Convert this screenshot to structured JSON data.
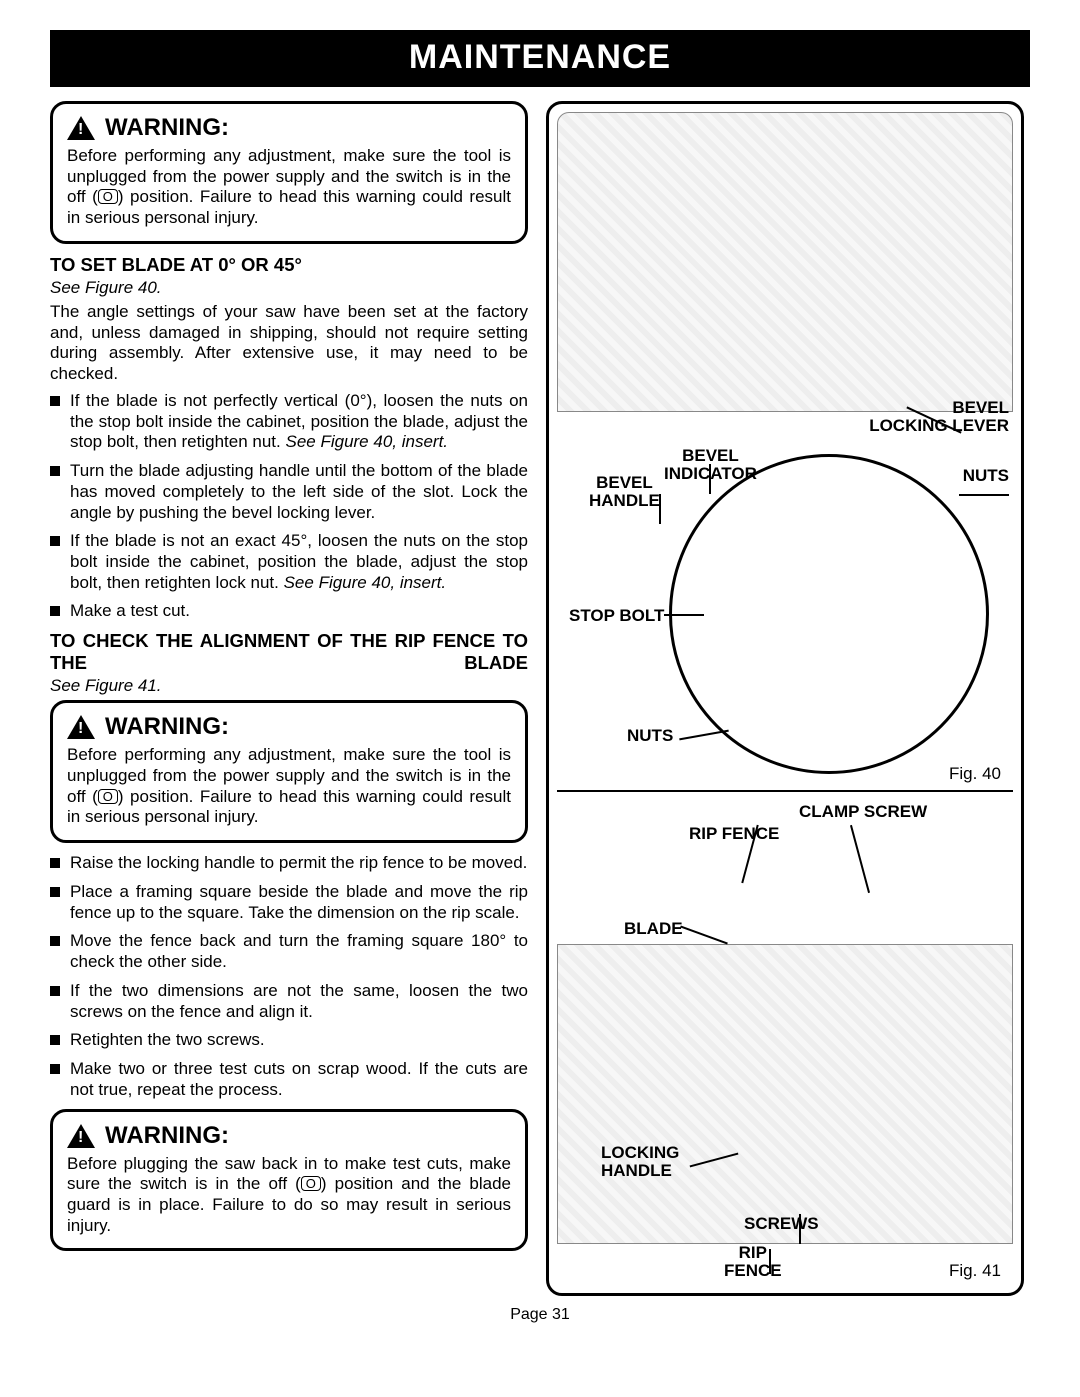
{
  "banner": "MAINTENANCE",
  "warnings": {
    "w1": {
      "title": "WARNING:",
      "body_a": "Before performing any adjustment, make sure the tool is unplugged from the power supply and the switch is in the off (",
      "sym": "O",
      "body_b": ") position. Failure to head this warning could result in serious personal injury."
    },
    "w2": {
      "title": "WARNING:",
      "body_a": "Before performing any adjustment, make sure the tool is unplugged from the power supply and the switch is in the off (",
      "sym": "O",
      "body_b": ") position. Failure to head this warning could result in serious personal injury."
    },
    "w3": {
      "title": "WARNING:",
      "body_a": "Before plugging the saw back in to make test cuts, make sure the switch is in the off (",
      "sym": "O",
      "body_b": ") position and the blade guard is in place. Failure to do so may result in serious injury."
    }
  },
  "section1": {
    "title": "TO SET BLADE AT 0° OR 45°",
    "see": "See Figure 40.",
    "para": "The angle settings of your saw have been set at the factory and, unless damaged in shipping, should not require setting during assembly. After extensive use, it may need to be checked.",
    "bullets": [
      {
        "t": "If the blade is not perfectly vertical (0°), loosen the nuts on the stop bolt inside the cabinet, position the blade, adjust the stop bolt, then retighten nut. ",
        "i": "See Figure 40, insert."
      },
      {
        "t": "Turn the blade adjusting handle until the bottom of the blade has moved completely to the left side of the slot. Lock the angle by pushing the bevel locking lever."
      },
      {
        "t": "If the blade is not an exact 45°, loosen the nuts on the stop bolt inside the cabinet, position the blade, adjust the stop bolt, then retighten lock nut. ",
        "i": "See Figure 40, insert."
      },
      {
        "t": "Make a test cut."
      }
    ]
  },
  "section2": {
    "title": "TO CHECK THE ALIGNMENT OF THE RIP FENCE TO THE BLADE",
    "see": "See Figure 41.",
    "bullets": [
      {
        "t": "Raise the locking handle to permit the rip fence to be moved."
      },
      {
        "t": "Place a framing square beside the blade and move the rip fence up to the square. Take the dimension on the rip scale."
      },
      {
        "t": "Move the fence back and turn the framing square 180° to check the other side."
      },
      {
        "t": "If the two dimensions are not the same, loosen the two screws on the fence and align it."
      },
      {
        "t": "Retighten the two screws."
      },
      {
        "t": "Make two or three test cuts on scrap wood.  If the cuts are not true, repeat the process."
      }
    ]
  },
  "figure": {
    "labels": {
      "bevel_locking_lever": "BEVEL LOCKING LEVER",
      "bevel_indicator": "BEVEL INDICATOR",
      "bevel_handle": "BEVEL HANDLE",
      "nuts_top": "NUTS",
      "stop_bolt": "STOP BOLT",
      "nuts_bot": "NUTS",
      "clamp_screw": "CLAMP SCREW",
      "rip_fence_top": "RIP FENCE",
      "blade": "BLADE",
      "locking_handle": "LOCKING HANDLE",
      "screws": "SCREWS",
      "rip_fence_bot": "RIP FENCE"
    },
    "captions": {
      "fig40": "Fig. 40",
      "fig41": "Fig. 41"
    }
  },
  "page_number": "Page 31"
}
